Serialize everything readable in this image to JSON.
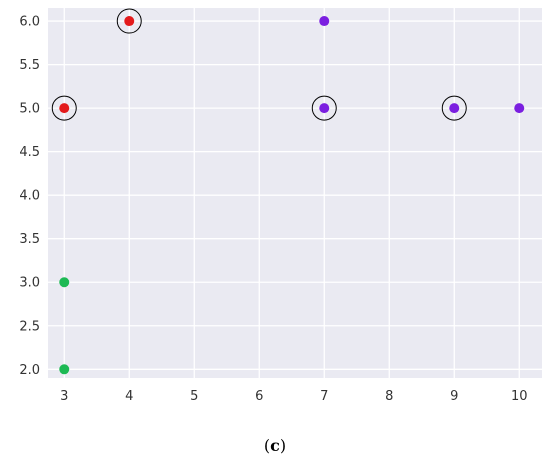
{
  "chart_data": {
    "type": "scatter",
    "title": "",
    "xlabel": "",
    "ylabel": "",
    "xlim": [
      2.75,
      10.35
    ],
    "ylim": [
      1.9,
      6.15
    ],
    "x_ticks": [
      3,
      4,
      5,
      6,
      7,
      8,
      9,
      10
    ],
    "y_ticks": [
      2.0,
      2.5,
      3.0,
      3.5,
      4.0,
      4.5,
      5.0,
      5.5,
      6.0
    ],
    "grid": true,
    "background_color": "#eaeaf2",
    "grid_color": "#ffffff",
    "points": [
      {
        "x": 3,
        "y": 5,
        "color": "#e31a1c",
        "circled": true
      },
      {
        "x": 4,
        "y": 6,
        "color": "#e31a1c",
        "circled": true
      },
      {
        "x": 7,
        "y": 6,
        "color": "#7b1fe0",
        "circled": false
      },
      {
        "x": 7,
        "y": 5,
        "color": "#7b1fe0",
        "circled": true
      },
      {
        "x": 9,
        "y": 5,
        "color": "#7b1fe0",
        "circled": true
      },
      {
        "x": 10,
        "y": 5,
        "color": "#7b1fe0",
        "circled": false
      },
      {
        "x": 3,
        "y": 3,
        "color": "#1db954",
        "circled": false
      },
      {
        "x": 3,
        "y": 2,
        "color": "#1db954",
        "circled": false
      }
    ]
  },
  "caption": {
    "open": "(",
    "letter": "c",
    "close": ")"
  }
}
